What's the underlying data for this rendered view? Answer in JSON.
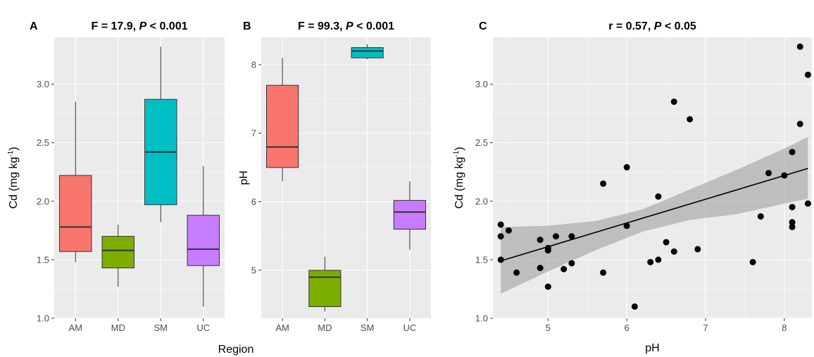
{
  "figure": {
    "shared_xlabel": "Region"
  },
  "chart_data": [
    {
      "letter": "A",
      "type": "box",
      "title_prefix": "F = 17.9, ",
      "title_p": "P",
      "title_suffix": " < 0.001",
      "ylabel": "Cd (mg kg",
      "ylabel_sup": "-1",
      "ylabel_close": ")",
      "ylim": [
        1.0,
        3.4
      ],
      "yticks": [
        1.0,
        1.5,
        2.0,
        2.5,
        3.0
      ],
      "ytick_labels": [
        "1.0",
        "1.5",
        "2.0",
        "2.5",
        "3.0"
      ],
      "categories": [
        "AM",
        "MD",
        "SM",
        "UC"
      ],
      "boxes": [
        {
          "name": "AM",
          "min": 1.48,
          "q1": 1.57,
          "median": 1.78,
          "q3": 2.22,
          "max": 2.85,
          "color": "#f8766d"
        },
        {
          "name": "MD",
          "min": 1.27,
          "q1": 1.43,
          "median": 1.58,
          "q3": 1.7,
          "max": 1.8,
          "color": "#7cae00"
        },
        {
          "name": "SM",
          "min": 1.82,
          "q1": 1.97,
          "median": 2.42,
          "q3": 2.87,
          "max": 3.32,
          "color": "#00bfc4"
        },
        {
          "name": "UC",
          "min": 1.1,
          "q1": 1.45,
          "median": 1.59,
          "q3": 1.88,
          "max": 2.3,
          "color": "#c77cff"
        }
      ]
    },
    {
      "letter": "B",
      "type": "box",
      "title_prefix": "F = 99.3, ",
      "title_p": "P",
      "title_suffix": " < 0.001",
      "ylabel": "pH",
      "ylim": [
        4.3,
        8.4
      ],
      "yticks": [
        5,
        6,
        7,
        8
      ],
      "ytick_labels": [
        "5",
        "6",
        "7",
        "8"
      ],
      "categories": [
        "AM",
        "MD",
        "SM",
        "UC"
      ],
      "boxes": [
        {
          "name": "AM",
          "min": 6.3,
          "q1": 6.5,
          "median": 6.8,
          "q3": 7.7,
          "max": 8.1,
          "color": "#f8766d"
        },
        {
          "name": "MD",
          "min": 4.4,
          "q1": 4.47,
          "median": 4.9,
          "q3": 5.0,
          "max": 5.2,
          "color": "#7cae00"
        },
        {
          "name": "SM",
          "min": 8.08,
          "q1": 8.1,
          "median": 8.2,
          "q3": 8.25,
          "max": 8.3,
          "color": "#00bfc4"
        },
        {
          "name": "UC",
          "min": 5.3,
          "q1": 5.6,
          "median": 5.85,
          "q3": 6.02,
          "max": 6.3,
          "color": "#c77cff"
        }
      ]
    },
    {
      "letter": "C",
      "type": "scatter",
      "title_prefix": "r = 0.57, ",
      "title_p": "P",
      "title_suffix": " < 0.05",
      "xlabel": "pH",
      "ylabel": "Cd (mg kg",
      "ylabel_sup": "-1",
      "ylabel_close": ")",
      "xlim": [
        4.3,
        8.35
      ],
      "ylim": [
        1.0,
        3.4
      ],
      "xticks": [
        5,
        6,
        7,
        8
      ],
      "xtick_labels": [
        "5",
        "6",
        "7",
        "8"
      ],
      "yticks": [
        1.0,
        1.5,
        2.0,
        2.5,
        3.0
      ],
      "ytick_labels": [
        "1.0",
        "1.5",
        "2.0",
        "2.5",
        "3.0"
      ],
      "point_color": "#000000",
      "line_color": "#000000",
      "band_color": "#999999",
      "points": [
        [
          4.4,
          1.8
        ],
        [
          4.4,
          1.7
        ],
        [
          4.4,
          1.5
        ],
        [
          4.5,
          1.75
        ],
        [
          4.6,
          1.39
        ],
        [
          4.9,
          1.67
        ],
        [
          4.9,
          1.43
        ],
        [
          5.0,
          1.6
        ],
        [
          5.0,
          1.58
        ],
        [
          5.0,
          1.27
        ],
        [
          5.1,
          1.7
        ],
        [
          5.2,
          1.42
        ],
        [
          5.3,
          1.7
        ],
        [
          5.3,
          1.47
        ],
        [
          5.7,
          2.15
        ],
        [
          5.7,
          1.39
        ],
        [
          6.0,
          2.29
        ],
        [
          6.0,
          1.79
        ],
        [
          6.1,
          1.1
        ],
        [
          6.3,
          1.48
        ],
        [
          6.4,
          2.04
        ],
        [
          6.4,
          1.5
        ],
        [
          6.5,
          1.65
        ],
        [
          6.6,
          2.85
        ],
        [
          6.6,
          1.57
        ],
        [
          6.8,
          2.7
        ],
        [
          6.9,
          1.59
        ],
        [
          7.6,
          1.48
        ],
        [
          7.7,
          1.87
        ],
        [
          7.8,
          2.24
        ],
        [
          8.0,
          2.22
        ],
        [
          8.1,
          2.42
        ],
        [
          8.1,
          1.95
        ],
        [
          8.1,
          1.82
        ],
        [
          8.1,
          1.78
        ],
        [
          8.2,
          3.32
        ],
        [
          8.2,
          2.66
        ],
        [
          8.3,
          3.08
        ],
        [
          8.3,
          1.98
        ]
      ],
      "fit_line": {
        "x": [
          4.4,
          8.3
        ],
        "y": [
          1.49,
          2.28
        ]
      },
      "band_upper": [
        [
          4.4,
          1.78
        ],
        [
          5.0,
          1.79
        ],
        [
          5.6,
          1.83
        ],
        [
          6.2,
          1.93
        ],
        [
          6.8,
          2.1
        ],
        [
          7.4,
          2.27
        ],
        [
          8.0,
          2.45
        ],
        [
          8.3,
          2.55
        ]
      ],
      "band_lower": [
        [
          4.4,
          1.21
        ],
        [
          5.0,
          1.4
        ],
        [
          5.6,
          1.58
        ],
        [
          6.2,
          1.74
        ],
        [
          6.8,
          1.84
        ],
        [
          7.4,
          1.89
        ],
        [
          8.0,
          1.98
        ],
        [
          8.3,
          2.02
        ]
      ]
    }
  ]
}
